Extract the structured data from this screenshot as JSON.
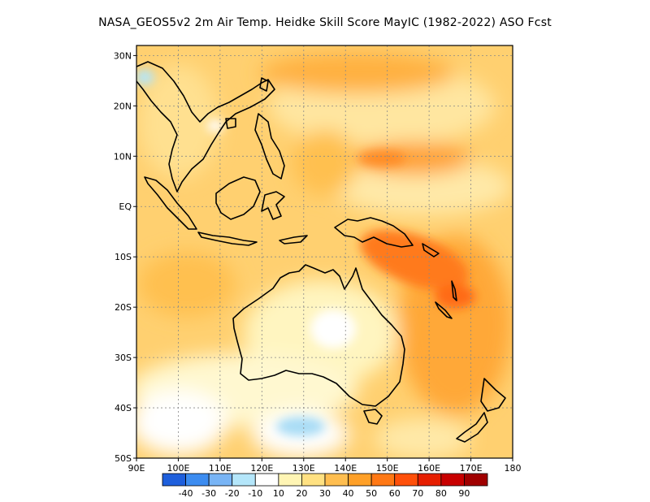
{
  "title": "NASA_GEOS5v2  2m Air Temp. Heidke Skill Score MayIC (1982-2022) ASO Fcst",
  "map": {
    "lon_range": [
      90,
      180
    ],
    "lat_range": [
      -50,
      32
    ],
    "x_ticks": [
      {
        "value": 90,
        "label": "90E"
      },
      {
        "value": 100,
        "label": "100E"
      },
      {
        "value": 110,
        "label": "110E"
      },
      {
        "value": 120,
        "label": "120E"
      },
      {
        "value": 130,
        "label": "130E"
      },
      {
        "value": 140,
        "label": "140E"
      },
      {
        "value": 150,
        "label": "150E"
      },
      {
        "value": 160,
        "label": "160E"
      },
      {
        "value": 170,
        "label": "170E"
      },
      {
        "value": 180,
        "label": "180"
      }
    ],
    "y_ticks": [
      {
        "value": 30,
        "label": "30N"
      },
      {
        "value": 20,
        "label": "20N"
      },
      {
        "value": 10,
        "label": "10N"
      },
      {
        "value": 0,
        "label": "EQ"
      },
      {
        "value": -10,
        "label": "10S"
      },
      {
        "value": -20,
        "label": "20S"
      },
      {
        "value": -30,
        "label": "30S"
      },
      {
        "value": -40,
        "label": "40S"
      },
      {
        "value": -50,
        "label": "50S"
      }
    ],
    "grid": "dotted"
  },
  "colorbar": {
    "colors": [
      "#1e5fdc",
      "#3c8cf0",
      "#78b4f5",
      "#b4e6fa",
      "#ffffff",
      "#fff5b4",
      "#ffe182",
      "#ffbe50",
      "#ffa028",
      "#ff7814",
      "#ff500a",
      "#e61e00",
      "#c80000",
      "#a00000"
    ],
    "labels": [
      "-40",
      "-30",
      "-20",
      "-10",
      "10",
      "20",
      "30",
      "40",
      "50",
      "60",
      "70",
      "80",
      "90"
    ]
  }
}
